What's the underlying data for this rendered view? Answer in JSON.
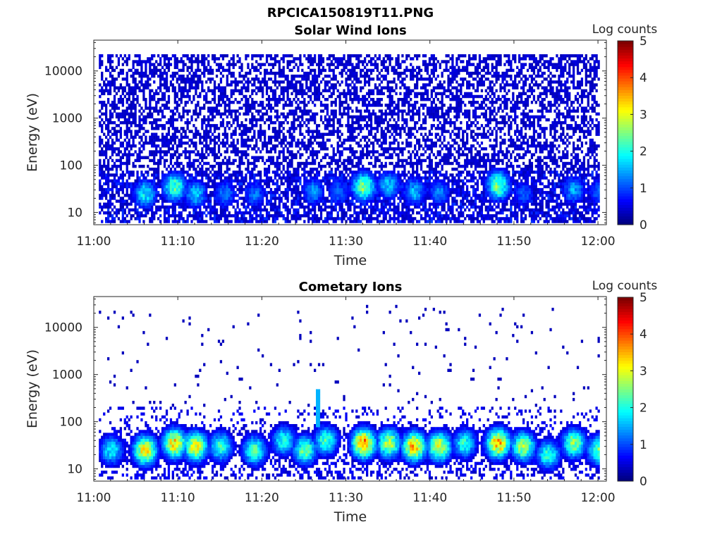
{
  "figure": {
    "title": "RPCICA150819T11.PNG"
  },
  "chart_data": [
    {
      "type": "heatmap",
      "title": "Solar Wind Ions",
      "xlabel": "Time",
      "ylabel": "Energy (eV)",
      "x_ticks": [
        "11:00",
        "11:10",
        "11:20",
        "11:30",
        "11:40",
        "11:50",
        "12:00"
      ],
      "x_range_minutes": [
        0,
        61
      ],
      "y_scale": "log",
      "y_ticks": [
        "10",
        "100",
        "1000",
        "10000"
      ],
      "y_range": [
        5.5,
        45000
      ],
      "colorbar": {
        "label": "Log counts",
        "ticks": [
          "0",
          "1",
          "2",
          "3",
          "4",
          "5"
        ],
        "range": [
          0,
          5
        ],
        "colormap": "jet"
      },
      "description_of_content": "dense background of low counts (~0.3) from 10 eV to 20000 eV; periodic enhancements near 20-40 eV",
      "peaks": [
        {
          "time_min": 6,
          "energy_ev": 25,
          "log_counts": 2.0
        },
        {
          "time_min": 9.5,
          "energy_ev": 35,
          "log_counts": 2.5
        },
        {
          "time_min": 12,
          "energy_ev": 25,
          "log_counts": 1.8
        },
        {
          "time_min": 15.5,
          "energy_ev": 25,
          "log_counts": 1.4
        },
        {
          "time_min": 19,
          "energy_ev": 25,
          "log_counts": 1.3
        },
        {
          "time_min": 26,
          "energy_ev": 28,
          "log_counts": 1.5
        },
        {
          "time_min": 29,
          "energy_ev": 28,
          "log_counts": 1.3
        },
        {
          "time_min": 32,
          "energy_ev": 35,
          "log_counts": 2.8
        },
        {
          "time_min": 35,
          "energy_ev": 38,
          "log_counts": 1.8
        },
        {
          "time_min": 38,
          "energy_ev": 28,
          "log_counts": 1.7
        },
        {
          "time_min": 41,
          "energy_ev": 28,
          "log_counts": 1.4
        },
        {
          "time_min": 48,
          "energy_ev": 38,
          "log_counts": 2.7
        },
        {
          "time_min": 51,
          "energy_ev": 25,
          "log_counts": 1.2
        },
        {
          "time_min": 57,
          "energy_ev": 30,
          "log_counts": 1.6
        },
        {
          "time_min": 60,
          "energy_ev": 28,
          "log_counts": 1.2
        }
      ]
    },
    {
      "type": "heatmap",
      "title": "Cometary Ions",
      "xlabel": "Time",
      "ylabel": "Energy (eV)",
      "x_ticks": [
        "11:00",
        "11:10",
        "11:20",
        "11:30",
        "11:40",
        "11:50",
        "12:00"
      ],
      "x_range_minutes": [
        0,
        61
      ],
      "y_scale": "log",
      "y_ticks": [
        "10",
        "100",
        "1000",
        "10000"
      ],
      "y_range": [
        5.5,
        45000
      ],
      "colorbar": {
        "label": "Log counts",
        "ticks": [
          "0",
          "1",
          "2",
          "3",
          "4",
          "5"
        ],
        "range": [
          0,
          5
        ],
        "colormap": "jet"
      },
      "description_of_content": "sparse counts above 200 eV; bursts of enhanced counts at 10-60 eV; narrow spike near 11:27 reaching ~500 eV",
      "peaks": [
        {
          "time_min": 2,
          "energy_ev": 25,
          "log_counts": 2.0
        },
        {
          "time_min": 6,
          "energy_ev": 25,
          "log_counts": 3.5
        },
        {
          "time_min": 9.5,
          "energy_ev": 35,
          "log_counts": 3.6
        },
        {
          "time_min": 12,
          "energy_ev": 30,
          "log_counts": 3.4
        },
        {
          "time_min": 15,
          "energy_ev": 30,
          "log_counts": 2.3
        },
        {
          "time_min": 19,
          "energy_ev": 25,
          "log_counts": 2.5
        },
        {
          "time_min": 22.5,
          "energy_ev": 40,
          "log_counts": 2.2
        },
        {
          "time_min": 25,
          "energy_ev": 25,
          "log_counts": 2.6
        },
        {
          "time_min": 27.5,
          "energy_ev": 40,
          "log_counts": 2.4
        },
        {
          "time_min": 32,
          "energy_ev": 35,
          "log_counts": 4.0
        },
        {
          "time_min": 35,
          "energy_ev": 35,
          "log_counts": 3.0
        },
        {
          "time_min": 38,
          "energy_ev": 30,
          "log_counts": 3.7
        },
        {
          "time_min": 41,
          "energy_ev": 30,
          "log_counts": 3.3
        },
        {
          "time_min": 44,
          "energy_ev": 35,
          "log_counts": 2.2
        },
        {
          "time_min": 48,
          "energy_ev": 35,
          "log_counts": 3.8
        },
        {
          "time_min": 51,
          "energy_ev": 30,
          "log_counts": 3.0
        },
        {
          "time_min": 54,
          "energy_ev": 20,
          "log_counts": 2.3
        },
        {
          "time_min": 57,
          "energy_ev": 35,
          "log_counts": 2.8
        },
        {
          "time_min": 60,
          "energy_ev": 25,
          "log_counts": 2.6
        }
      ],
      "spike": {
        "time_min": 26.5,
        "energy_ev_range": [
          80,
          500
        ],
        "log_counts": 1.5
      }
    }
  ]
}
